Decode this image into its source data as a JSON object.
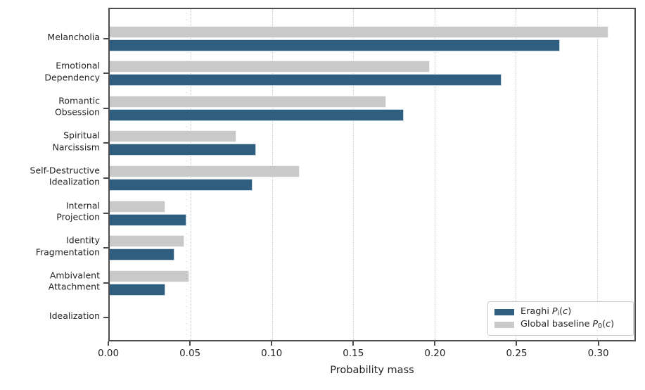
{
  "chart_data": {
    "type": "bar",
    "orientation": "horizontal",
    "xlabel": "Probability mass",
    "xlim": [
      0,
      0.323
    ],
    "xticks": [
      0,
      0.05,
      0.1,
      0.15,
      0.2,
      0.25,
      0.3
    ],
    "xtick_labels": [
      "0.00",
      "0.05",
      "0.10",
      "0.15",
      "0.20",
      "0.25",
      "0.30"
    ],
    "grid": "x, dotted, light-gray",
    "legend_position": "lower right",
    "categories": [
      "Melancholia",
      "Emotional Dependency",
      "Romantic Obsession",
      "Spiritual Narcissism",
      "Self-Destructive Idealization",
      "Internal Projection",
      "Identity Fragmentation",
      "Ambivalent Attachment",
      "Idealization"
    ],
    "category_label_lines": [
      [
        "Melancholia"
      ],
      [
        "Emotional",
        "Dependency"
      ],
      [
        "Romantic",
        "Obsession"
      ],
      [
        "Spiritual",
        "Narcissism"
      ],
      [
        "Self-Destructive",
        "Idealization"
      ],
      [
        "Internal",
        "Projection"
      ],
      [
        "Identity",
        "Fragmentation"
      ],
      [
        "Ambivalent",
        "Attachment"
      ],
      [
        "Idealization"
      ]
    ],
    "series": [
      {
        "key": "eraghi",
        "name": "Eraghi P_i(c)",
        "color": "#2f5e80",
        "values": [
          0.277,
          0.241,
          0.181,
          0.09,
          0.088,
          0.047,
          0.04,
          0.034,
          0.0
        ]
      },
      {
        "key": "baseline",
        "name": "Global baseline P_0(c)",
        "color": "#c9c9c9",
        "values": [
          0.307,
          0.197,
          0.17,
          0.078,
          0.117,
          0.034,
          0.046,
          0.049,
          0.0
        ]
      }
    ],
    "legend": {
      "items": [
        {
          "series": "eraghi",
          "prefix": "Eraghi",
          "symbol": "P",
          "subscript": "i",
          "open_paren": "(",
          "variable": "c",
          "close_paren": ")"
        },
        {
          "series": "baseline",
          "prefix": "Global baseline",
          "symbol": "P",
          "subscript": "0",
          "open_paren": "(",
          "variable": "c",
          "close_paren": ")"
        }
      ]
    },
    "colors": {
      "eraghi_bar": "#2f5e80",
      "baseline_bar": "#c9c9c9",
      "spine": "#4d4d4d",
      "gridline": "#c6c6c6",
      "text": "#262626"
    }
  }
}
